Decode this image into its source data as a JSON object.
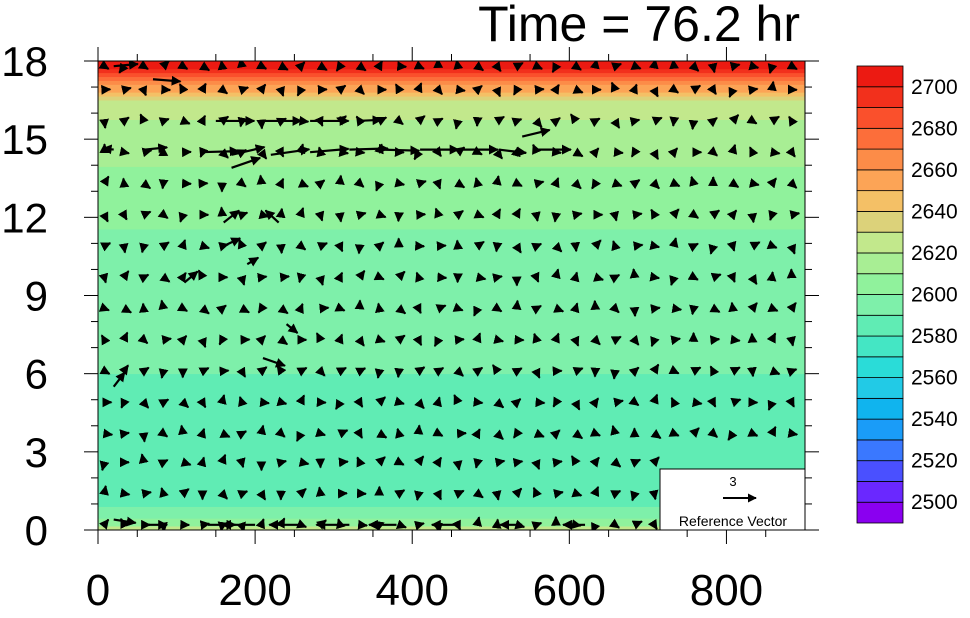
{
  "chart_data": {
    "type": "heatmap",
    "title": "Time = 76.2 hr",
    "xlim": [
      0,
      900
    ],
    "ylim": [
      0,
      18
    ],
    "x_ticks": [
      "0",
      "200",
      "400",
      "600",
      "800"
    ],
    "x_tick_values": [
      0,
      200,
      400,
      600,
      800
    ],
    "y_ticks": [
      "0",
      "3",
      "6",
      "9",
      "12",
      "15",
      "18"
    ],
    "y_tick_values": [
      0,
      3,
      6,
      9,
      12,
      15,
      18
    ],
    "colorbar": {
      "levels": [
        2490,
        2500,
        2510,
        2520,
        2530,
        2540,
        2550,
        2560,
        2570,
        2580,
        2590,
        2600,
        2610,
        2620,
        2630,
        2640,
        2650,
        2660,
        2670,
        2680,
        2690,
        2700,
        2710
      ],
      "labels": [
        "2500",
        "2520",
        "2540",
        "2560",
        "2580",
        "2600",
        "2620",
        "2640",
        "2660",
        "2680",
        "2700"
      ],
      "label_values": [
        2500,
        2520,
        2540,
        2560,
        2580,
        2600,
        2620,
        2640,
        2660,
        2680,
        2700
      ],
      "colors": [
        "#8a00f0",
        "#6a28ff",
        "#4a50ff",
        "#3a78ff",
        "#1a9cf8",
        "#10b4ee",
        "#22cae6",
        "#2adcd8",
        "#44e6c4",
        "#60ecb4",
        "#7ef0aa",
        "#90f29c",
        "#a8ee94",
        "#c2e88c",
        "#dcd27a",
        "#f4c066",
        "#fca456",
        "#fc8c48",
        "#fc6e3a",
        "#fa502c",
        "#f2301c",
        "#ec1a12",
        "#fc0000"
      ]
    },
    "field_profile": {
      "heights": [
        0,
        0.3,
        1,
        2,
        4,
        6,
        9,
        11,
        13,
        14.5,
        15.5,
        16.5,
        17.2,
        17.6,
        18
      ],
      "values": [
        2626,
        2602,
        2586,
        2584,
        2588,
        2590,
        2591,
        2598,
        2606,
        2612,
        2617,
        2630,
        2668,
        2695,
        2708
      ]
    },
    "reference_vector": {
      "value": "3",
      "label": "Reference Vector"
    },
    "vector_grid": {
      "x": [
        0,
        25,
        50,
        75,
        100,
        125,
        150,
        175,
        200,
        225,
        250,
        275,
        300,
        325,
        350,
        375,
        400,
        425,
        450,
        475,
        500,
        525,
        550,
        575,
        600,
        625,
        650,
        675,
        700,
        725,
        750,
        775,
        800,
        825,
        850,
        875
      ],
      "y": [
        0.2,
        1.4,
        2.6,
        3.7,
        4.9,
        6.1,
        7.3,
        8.5,
        9.7,
        10.9,
        12.1,
        13.3,
        14.5,
        15.7,
        16.9,
        17.8
      ]
    },
    "strong_vectors": [
      {
        "x": 20,
        "y": 17.8,
        "u": 2.2,
        "v": 0.2
      },
      {
        "x": 70,
        "y": 17.3,
        "u": 2.5,
        "v": -0.2
      },
      {
        "x": 150,
        "y": 15.7,
        "u": 3.5,
        "v": 0
      },
      {
        "x": 210,
        "y": 15.7,
        "u": 3.5,
        "v": 0
      },
      {
        "x": 270,
        "y": 15.7,
        "u": 3.5,
        "v": 0
      },
      {
        "x": 330,
        "y": 15.7,
        "u": 2.2,
        "v": 0.1
      },
      {
        "x": 540,
        "y": 15.1,
        "u": 2.5,
        "v": 0.6
      },
      {
        "x": 20,
        "y": 14.6,
        "u": -1.0,
        "v": 0.1
      },
      {
        "x": 60,
        "y": 14.6,
        "u": 2.0,
        "v": 0.2
      },
      {
        "x": 130,
        "y": 14.5,
        "u": 3.5,
        "v": 0.1
      },
      {
        "x": 170,
        "y": 14.4,
        "u": 3.0,
        "v": 0.7
      },
      {
        "x": 220,
        "y": 14.4,
        "u": 3.5,
        "v": 0.5
      },
      {
        "x": 270,
        "y": 14.5,
        "u": 3.5,
        "v": 0.3
      },
      {
        "x": 320,
        "y": 14.6,
        "u": 3.5,
        "v": 0.1
      },
      {
        "x": 360,
        "y": 14.6,
        "u": 3.5,
        "v": -0.1
      },
      {
        "x": 410,
        "y": 14.6,
        "u": 3.5,
        "v": 0
      },
      {
        "x": 460,
        "y": 14.6,
        "u": 3.5,
        "v": 0
      },
      {
        "x": 510,
        "y": 14.6,
        "u": 2.5,
        "v": -0.3
      },
      {
        "x": 560,
        "y": 14.6,
        "u": 3.0,
        "v": 0
      },
      {
        "x": 170,
        "y": 13.9,
        "u": 2.6,
        "v": 0.9
      },
      {
        "x": 160,
        "y": 11.8,
        "u": 1.4,
        "v": 1.1
      },
      {
        "x": 230,
        "y": 11.8,
        "u": -1.2,
        "v": 1.1
      },
      {
        "x": 160,
        "y": 10.9,
        "u": 1.5,
        "v": 0.7
      },
      {
        "x": 110,
        "y": 9.5,
        "u": 1.2,
        "v": 1.0
      },
      {
        "x": 190,
        "y": 10.2,
        "u": 1.0,
        "v": 0.6
      },
      {
        "x": 240,
        "y": 7.9,
        "u": 1.0,
        "v": -0.8
      },
      {
        "x": 210,
        "y": 6.6,
        "u": 2.0,
        "v": -0.7
      },
      {
        "x": 20,
        "y": 5.5,
        "u": 1.0,
        "v": 1.3
      },
      {
        "x": 20,
        "y": 0.4,
        "u": 2.0,
        "v": -0.3
      },
      {
        "x": 60,
        "y": 0.2,
        "u": 2.0,
        "v": 0
      },
      {
        "x": 140,
        "y": 0.2,
        "u": 2.5,
        "v": 0
      },
      {
        "x": 200,
        "y": 0.2,
        "u": -3.0,
        "v": 0
      },
      {
        "x": 260,
        "y": 0.2,
        "u": -3.0,
        "v": 0
      },
      {
        "x": 320,
        "y": 0.2,
        "u": -3.0,
        "v": 0
      },
      {
        "x": 380,
        "y": 0.2,
        "u": -2.5,
        "v": 0
      },
      {
        "x": 460,
        "y": 0.2,
        "u": -2.5,
        "v": 0
      },
      {
        "x": 540,
        "y": 0.2,
        "u": -2.0,
        "v": 0
      },
      {
        "x": 620,
        "y": 0.2,
        "u": -2.0,
        "v": 0
      }
    ]
  }
}
